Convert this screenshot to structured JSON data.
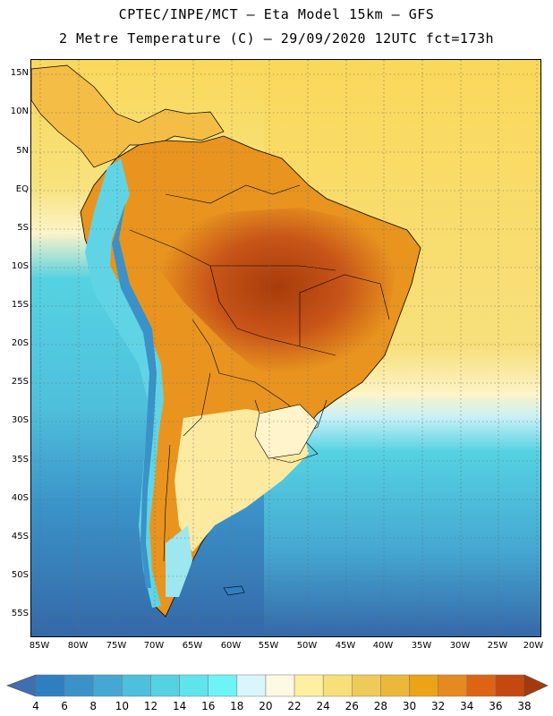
{
  "header": {
    "line1": "CPTEC/INPE/MCT  –   Eta Model 15km  –  GFS",
    "line2": "2 Metre Temperature (C) – 29/09/2020 12UTC fct=173h"
  },
  "map": {
    "variable": "2 Metre Temperature",
    "units": "C",
    "lat_labels": [
      "15N",
      "10N",
      "5N",
      "EQ",
      "5S",
      "10S",
      "15S",
      "20S",
      "25S",
      "30S",
      "35S",
      "40S",
      "45S",
      "50S",
      "55S"
    ],
    "lon_labels": [
      "85W",
      "80W",
      "75W",
      "70W",
      "65W",
      "60W",
      "55W",
      "50W",
      "45W",
      "40W",
      "35W",
      "30W",
      "25W",
      "20W"
    ],
    "ocean_color": "#5fd0e8",
    "land_color": "#e8941f",
    "hot_color": "#a83c0a"
  },
  "colorbar": {
    "ticks": [
      "4",
      "6",
      "8",
      "10",
      "12",
      "14",
      "16",
      "18",
      "20",
      "22",
      "24",
      "26",
      "28",
      "30",
      "32",
      "34",
      "36",
      "38"
    ],
    "colors": [
      "#3f6fb0",
      "#2e7fc0",
      "#3a92c8",
      "#45a8d2",
      "#4fc0dc",
      "#55d2e2",
      "#60e4ec",
      "#6ef4f6",
      "#d8f6fb",
      "#fff8e2",
      "#fdf0a0",
      "#f7df7a",
      "#efca58",
      "#ecb83a",
      "#eda317",
      "#e58a20",
      "#dd6414",
      "#c54810",
      "#a5380c"
    ]
  }
}
